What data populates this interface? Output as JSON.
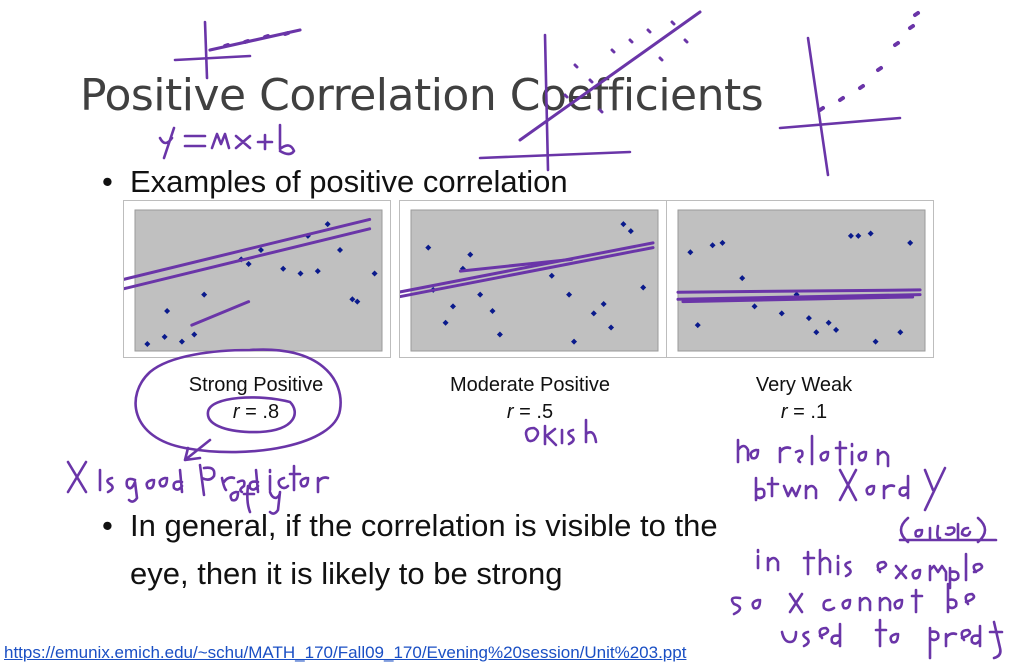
{
  "slide": {
    "title": "Positive Correlation Coefficients",
    "bullet1": "Examples of positive correlation",
    "bullet2_line1": "In general, if the correlation is visible to the",
    "bullet2_line2": "eye, then it is likely to be strong",
    "bullet_glyph": "•",
    "footer_url": "https://emunix.emich.edu/~schu/MATH_170/Fall09_170/Evening%20session/Unit%203.ppt"
  },
  "chart_data": [
    {
      "type": "scatter",
      "caption": "Strong Positive",
      "r_label": "r",
      "r_value": " = .8",
      "points": [
        [
          0.5,
          0.3
        ],
        [
          1.2,
          0.6
        ],
        [
          1.3,
          1.7
        ],
        [
          1.9,
          0.4
        ],
        [
          2.4,
          0.7
        ],
        [
          2.8,
          2.4
        ],
        [
          4.3,
          3.9
        ],
        [
          4.6,
          3.7
        ],
        [
          5.1,
          4.3
        ],
        [
          6.0,
          3.5
        ],
        [
          6.7,
          3.3
        ],
        [
          7.0,
          4.9
        ],
        [
          7.4,
          3.4
        ],
        [
          7.8,
          5.4
        ],
        [
          8.3,
          4.3
        ],
        [
          8.8,
          2.2
        ],
        [
          9.0,
          2.1
        ],
        [
          9.7,
          3.3
        ]
      ],
      "xlim": [
        0,
        10
      ],
      "ylim": [
        0,
        6
      ]
    },
    {
      "type": "scatter",
      "caption": "Moderate Positive",
      "r_label": "r",
      "r_value": " = .5",
      "points": [
        [
          0.7,
          4.4
        ],
        [
          0.9,
          2.6
        ],
        [
          1.4,
          1.2
        ],
        [
          1.7,
          1.9
        ],
        [
          2.1,
          3.5
        ],
        [
          2.4,
          4.1
        ],
        [
          2.8,
          2.4
        ],
        [
          3.3,
          1.7
        ],
        [
          3.6,
          0.7
        ],
        [
          5.7,
          3.2
        ],
        [
          6.4,
          2.4
        ],
        [
          6.6,
          0.4
        ],
        [
          7.4,
          1.6
        ],
        [
          7.8,
          2.0
        ],
        [
          8.1,
          1.0
        ],
        [
          8.6,
          5.4
        ],
        [
          8.9,
          5.1
        ],
        [
          9.4,
          2.7
        ]
      ],
      "xlim": [
        0,
        10
      ],
      "ylim": [
        0,
        6
      ]
    },
    {
      "type": "scatter",
      "caption": "Very Weak",
      "r_label": "r",
      "r_value": " = .1",
      "points": [
        [
          0.5,
          4.2
        ],
        [
          0.8,
          1.1
        ],
        [
          1.4,
          4.5
        ],
        [
          1.8,
          4.6
        ],
        [
          2.6,
          3.1
        ],
        [
          3.1,
          1.9
        ],
        [
          4.2,
          1.6
        ],
        [
          4.8,
          2.4
        ],
        [
          5.3,
          1.4
        ],
        [
          5.6,
          0.8
        ],
        [
          6.1,
          1.2
        ],
        [
          6.4,
          0.9
        ],
        [
          7.0,
          4.9
        ],
        [
          7.3,
          4.9
        ],
        [
          7.8,
          5.0
        ],
        [
          8.0,
          0.4
        ],
        [
          9.4,
          4.6
        ],
        [
          9.0,
          0.8
        ]
      ],
      "xlim": [
        0,
        10
      ],
      "ylim": [
        0,
        6
      ]
    }
  ],
  "annotations": {
    "equation": "y = mx + b",
    "under_strong": "x is a good predictor of y",
    "under_moderate": "okish",
    "weak_line1": "no relation",
    "weak_line2": "btwn x and y",
    "weak_line3": "(maybe)",
    "weak_line4": "in this example",
    "weak_line5": "so x cannot be",
    "weak_line6": "used to predict y"
  },
  "colors": {
    "ink": "#6a35a8",
    "point": "#0a1a8c",
    "plot_bg": "#c0c0c0",
    "title": "#404040"
  }
}
